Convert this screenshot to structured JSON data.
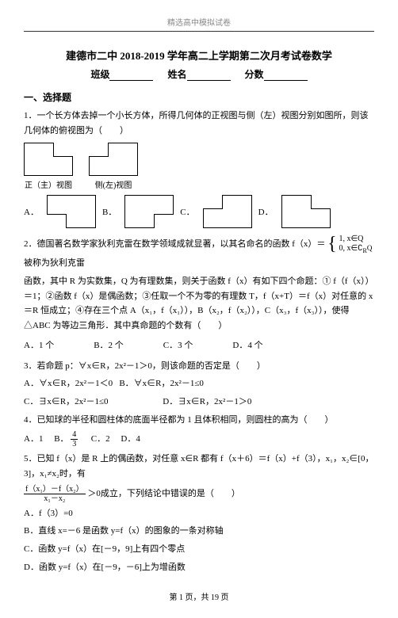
{
  "header": {
    "watermark": "精选高中模拟试卷"
  },
  "title": {
    "main": "建德市二中 2018-2019 学年高二上学期第二次月考试卷数学",
    "class_label": "班级",
    "name_label": "姓名",
    "score_label": "分数"
  },
  "section1": {
    "heading": "一、选择题"
  },
  "q1": {
    "stem": "1．一个长方体去掉一个小长方体，所得几何体的正视图与侧（左）视图分别如图所，则该几何体的俯视图为（　　）",
    "front_label": "正（主）视图",
    "side_label": "侧(左)视图",
    "optA": "A．",
    "optB": "B．",
    "optC": "C．",
    "optD": "D．"
  },
  "q2": {
    "stem_p1": "2．德国著名数学家狄利克雷在数学领域成就显著，以其名命名的函数 f（x）＝",
    "piece1": "1,  x∈Q",
    "piece2": "0,  x∈∁",
    "piece2_sub": "R",
    "piece2_tail": "Q",
    "stem_p2": "被称为狄利克雷",
    "stem_p3": "函数，其中 R 为实数集，Q 为有理数集，则关于函数 f（x）有如下四个命题：① f（f（x））＝1；②函数 f（x）是偶函数；③任取一个不为零的有理数 T，f（x+T）＝f（x）对任意的 x＝R 恒成立；④存在三个点 A（x₁，f（x₁）），B（x₂，f（x₂）），C（x₃，f（x₃）），使得△ABC 为等边三角形．其中真命题的个数有（　　）",
    "optA": "A．1 个",
    "optB": "B．2 个",
    "optC": "C．3 个",
    "optD": "D．4 个"
  },
  "q3": {
    "stem": "3．若命题 p：∀x∈R，2x²－1＞0，则该命题的否定是（　　）",
    "optA": "A．∀x∈R，2x²－1＜0",
    "optB": "B．∀x∈R，2x²－1≤0",
    "optC": "C．∃x∈R，2x²－1≤0",
    "optD": "D．∃x∈R，2x²－1＞0"
  },
  "q4": {
    "stem": "4．已知球的半径和圆柱体的底面半径都为 1 且体积相同，则圆柱的高为（　　）",
    "optA": "A．1",
    "optB_pre": "B．",
    "optB_num": "4",
    "optB_den": "3",
    "optC": "C．2",
    "optD": "D．4"
  },
  "q5": {
    "stem_p1": "5．已知 f（x）是 R 上的偶函数，对任意 x∈R 都有 f（x＋6）＝f（x）+f（3），x₁，x₂∈[0，3]，x₁≠x₂时，有",
    "frac_num": "f（x₁）－f（x₂）",
    "frac_den": "x₁－x₂",
    "stem_p2": "＞0成立，下列结论中错误的是（　　）",
    "optA": "A．f（3）=0",
    "optB": "B．直线 x=－6 是函数 y=f（x）的图象的一条对称轴",
    "optC": "C．函数 y=f（x）在[－9，9]上有四个零点",
    "optD": "D．函数 y=f（x）在[－9，－6]上为增函数"
  },
  "footer": {
    "text": "第 1 页，共 19 页"
  }
}
